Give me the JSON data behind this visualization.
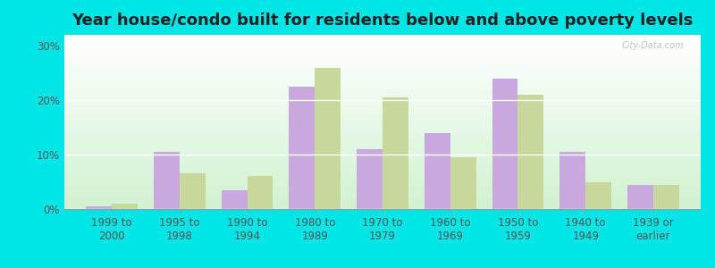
{
  "categories": [
    "1999 to\n2000",
    "1995 to\n1998",
    "1990 to\n1994",
    "1980 to\n1989",
    "1970 to\n1979",
    "1960 to\n1969",
    "1950 to\n1959",
    "1940 to\n1949",
    "1939 or\nearlier"
  ],
  "below_poverty": [
    0.5,
    10.5,
    3.5,
    22.5,
    11.0,
    14.0,
    24.0,
    10.5,
    4.5
  ],
  "above_poverty": [
    1.0,
    6.5,
    6.0,
    26.0,
    20.5,
    9.5,
    21.0,
    5.0,
    4.5
  ],
  "below_color": "#c9a8e0",
  "above_color": "#c8d89a",
  "title": "Year house/condo built for residents below and above poverty levels",
  "title_fontsize": 13,
  "ylim": [
    0,
    32
  ],
  "yticks": [
    0,
    10,
    20,
    30
  ],
  "ytick_labels": [
    "0%",
    "10%",
    "20%",
    "30%"
  ],
  "outer_bg": "#00e5e5",
  "plot_bg": "#e8f5e0",
  "bar_width": 0.38,
  "grid_color": "#ffffff",
  "tick_fontsize": 8.5,
  "watermark": "City-Data.com"
}
